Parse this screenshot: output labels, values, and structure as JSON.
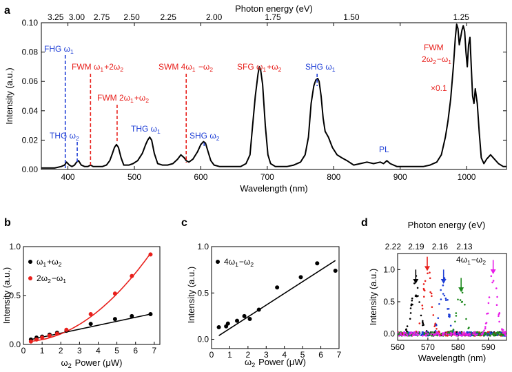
{
  "colors": {
    "red": "#e8201c",
    "blue": "#1f3fd6",
    "green": "#1e8a1e",
    "magenta": "#e81ee8",
    "black": "#000000"
  },
  "chart_data": [
    {
      "panel": "a",
      "type": "line",
      "xlabel": "Wavelength (nm)",
      "ylabel": "Intensity (a.u.)",
      "top_xlabel": "Photon energy (eV)",
      "xlim": [
        360,
        1060
      ],
      "ylim": [
        0,
        0.1
      ],
      "xticks": [
        400,
        500,
        600,
        700,
        800,
        900,
        1000
      ],
      "yticks": [
        "0.00",
        "0.02",
        "0.04",
        "0.06",
        "0.08",
        "0.10"
      ],
      "top_ticks": [
        "3.25",
        "3.00",
        "2.75",
        "2.50",
        "2.25",
        "2.00",
        "1.75",
        "1.50",
        "1.25"
      ],
      "series": [
        {
          "name": "spectrum",
          "x": [
            360,
            380,
            390,
            395,
            398,
            402,
            406,
            410,
            413,
            416,
            420,
            425,
            430,
            434,
            438,
            442,
            447,
            452,
            458,
            463,
            467,
            470,
            473,
            476,
            480,
            484,
            488,
            492,
            498,
            505,
            512,
            517,
            520,
            523,
            526,
            530,
            535,
            542,
            550,
            558,
            565,
            570,
            575,
            578,
            582,
            588,
            595,
            600,
            604,
            607,
            611,
            615,
            620,
            628,
            638,
            650,
            660,
            668,
            674,
            678,
            682,
            686,
            688,
            690,
            693,
            697,
            701,
            705,
            712,
            720,
            730,
            740,
            750,
            757,
            762,
            766,
            770,
            773,
            776,
            778,
            781,
            784,
            787,
            792,
            798,
            805,
            812,
            820,
            830,
            840,
            850,
            860,
            870,
            875,
            880,
            885,
            895,
            905,
            915,
            925,
            935,
            945,
            955,
            962,
            968,
            972,
            976,
            980,
            983,
            985,
            987,
            989,
            991,
            993,
            995,
            997,
            999,
            1001,
            1003,
            1005,
            1007,
            1009,
            1011,
            1013,
            1016,
            1019,
            1022,
            1026,
            1030,
            1036,
            1042,
            1048,
            1055,
            1060
          ],
          "y": [
            0.001,
            0.001,
            0.002,
            0.003,
            0.005,
            0.003,
            0.002,
            0.003,
            0.005,
            0.006,
            0.003,
            0.002,
            0.002,
            0.003,
            0.002,
            0.002,
            0.002,
            0.002,
            0.003,
            0.006,
            0.011,
            0.015,
            0.017,
            0.015,
            0.008,
            0.003,
            0.003,
            0.003,
            0.004,
            0.006,
            0.011,
            0.017,
            0.02,
            0.022,
            0.02,
            0.011,
            0.004,
            0.003,
            0.003,
            0.004,
            0.007,
            0.01,
            0.008,
            0.006,
            0.005,
            0.007,
            0.012,
            0.017,
            0.019,
            0.018,
            0.012,
            0.006,
            0.003,
            0.002,
            0.002,
            0.002,
            0.002,
            0.004,
            0.01,
            0.03,
            0.05,
            0.065,
            0.07,
            0.068,
            0.058,
            0.03,
            0.01,
            0.004,
            0.002,
            0.002,
            0.002,
            0.003,
            0.005,
            0.01,
            0.022,
            0.045,
            0.057,
            0.061,
            0.062,
            0.06,
            0.05,
            0.035,
            0.026,
            0.022,
            0.015,
            0.01,
            0.008,
            0.006,
            0.003,
            0.004,
            0.005,
            0.004,
            0.005,
            0.004,
            0.006,
            0.004,
            0.002,
            0.002,
            0.002,
            0.002,
            0.002,
            0.003,
            0.005,
            0.01,
            0.022,
            0.033,
            0.048,
            0.07,
            0.09,
            0.099,
            0.096,
            0.085,
            0.09,
            0.095,
            0.098,
            0.094,
            0.08,
            0.07,
            0.085,
            0.09,
            0.07,
            0.05,
            0.045,
            0.055,
            0.045,
            0.025,
            0.008,
            0.004,
            0.007,
            0.01,
            0.007,
            0.004,
            0.002,
            0.002
          ]
        }
      ],
      "annotations": [
        {
          "text": "FHG ω1",
          "color": "blue",
          "x": 396
        },
        {
          "text": "THG ω2",
          "color": "blue",
          "x": 414
        },
        {
          "text": "FWM ω1+2ω2",
          "color": "red",
          "x": 434
        },
        {
          "text": "FWM 2ω1+ω2",
          "color": "red",
          "x": 474
        },
        {
          "text": "THG ω1",
          "color": "blue",
          "x": 523
        },
        {
          "text": "SWM 4ω1 −ω2",
          "color": "red",
          "x": 578
        },
        {
          "text": "SHG ω2",
          "color": "blue",
          "x": 605
        },
        {
          "text": "SFG ω1+ω2",
          "color": "red",
          "x": 688
        },
        {
          "text": "SHG ω1",
          "color": "blue",
          "x": 775
        },
        {
          "text": "PL",
          "color": "blue",
          "x": 870
        },
        {
          "text": "FWM",
          "color": "red",
          "x": 990
        },
        {
          "text": "2ω2−ω1",
          "color": "red",
          "x": 990
        },
        {
          "text": "×0.1",
          "color": "red",
          "x": 990
        }
      ]
    },
    {
      "panel": "b",
      "type": "scatter",
      "xlabel": "ω2 Power (μW)",
      "ylabel": "Intensity (a.u.)",
      "xlim": [
        0,
        7.3
      ],
      "ylim": [
        0,
        1.0
      ],
      "xticks": [
        "0",
        "1",
        "2",
        "3",
        "4",
        "5",
        "6",
        "7"
      ],
      "yticks": [
        "0.0",
        "0.5",
        "1.0"
      ],
      "series": [
        {
          "name": "ω1+ω2",
          "color": "black",
          "x": [
            0.4,
            0.7,
            1.0,
            1.4,
            1.8,
            2.3,
            3.6,
            4.9,
            5.8,
            6.8
          ],
          "y": [
            0.05,
            0.07,
            0.08,
            0.1,
            0.12,
            0.14,
            0.21,
            0.26,
            0.29,
            0.31
          ]
        },
        {
          "name": "2ω2−ω1",
          "color": "red",
          "x": [
            0.4,
            0.7,
            1.0,
            1.4,
            1.8,
            2.3,
            3.6,
            4.9,
            5.8,
            6.8
          ],
          "y": [
            0.03,
            0.05,
            0.07,
            0.09,
            0.11,
            0.15,
            0.31,
            0.52,
            0.7,
            0.92
          ]
        }
      ],
      "legend": [
        {
          "label": "ω1+ω2",
          "color": "black"
        },
        {
          "label": "2ω2−ω1",
          "color": "red"
        }
      ]
    },
    {
      "panel": "c",
      "type": "scatter",
      "xlabel": "ω2 Power (μW)",
      "ylabel": "Intensity (a.u.)",
      "xlim": [
        0,
        7
      ],
      "ylim": [
        -0.1,
        1.0
      ],
      "xticks": [
        "0",
        "1",
        "2",
        "3",
        "4",
        "5",
        "6",
        "7"
      ],
      "yticks": [
        "0.0",
        "0.5",
        "1.0"
      ],
      "series": [
        {
          "name": "4ω1−ω2",
          "color": "black",
          "x": [
            0.4,
            0.8,
            0.9,
            1.4,
            1.8,
            2.1,
            2.6,
            3.6,
            4.9,
            5.8,
            6.8
          ],
          "y": [
            0.13,
            0.14,
            0.17,
            0.2,
            0.25,
            0.22,
            0.32,
            0.56,
            0.67,
            0.82,
            0.74
          ]
        }
      ],
      "legend": [
        {
          "label": "4ω1−ω2",
          "color": "black"
        }
      ]
    },
    {
      "panel": "d",
      "type": "scatter",
      "xlabel": "Wavelength (nm)",
      "ylabel": "Intensity (a.u.)",
      "top_xlabel": "Photon energy (eV)",
      "xlim": [
        560,
        596
      ],
      "ylim": [
        -0.1,
        1.25
      ],
      "xticks": [
        "560",
        "570",
        "580",
        "590"
      ],
      "yticks": [
        "0.0",
        "0.5",
        "1.0"
      ],
      "top_ticks": [
        "2.22",
        "2.19",
        "2.16",
        "2.13"
      ],
      "inset_label": "4ω1−ω2",
      "peaks": [
        {
          "color": "black",
          "center": 566,
          "amp": 0.75
        },
        {
          "color": "red",
          "center": 569.8,
          "amp": 0.95
        },
        {
          "color": "blue",
          "center": 575.2,
          "amp": 0.75
        },
        {
          "color": "green",
          "center": 581.0,
          "amp": 0.62
        },
        {
          "color": "magenta",
          "center": 591.6,
          "amp": 0.9
        }
      ]
    }
  ]
}
